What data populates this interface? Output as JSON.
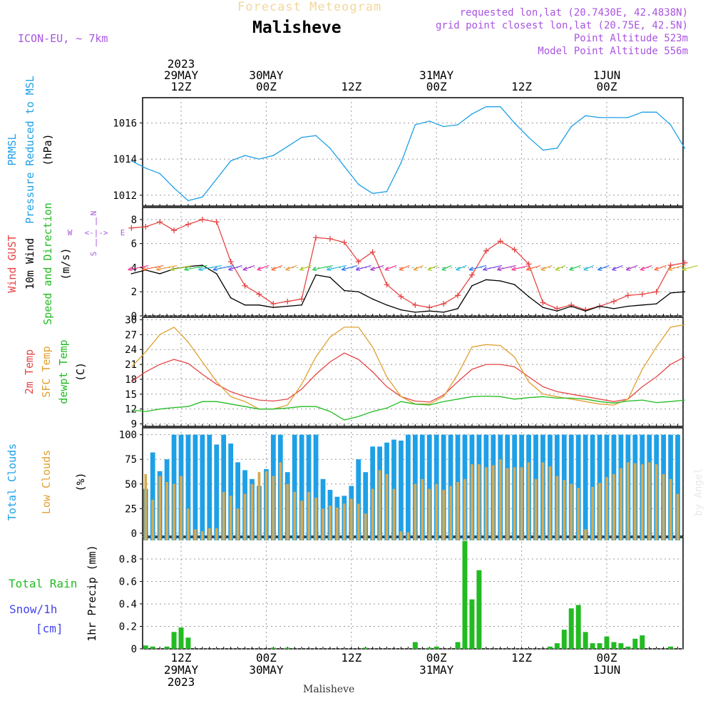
{
  "header": {
    "banner": "Forecast Meteogram",
    "station": "Malisheve",
    "model": "ICON-EU, ~ 7km",
    "requested": "requested lon,lat (20.7430E, 42.4838N)",
    "gridpoint": "grid point closest lon,lat (20.75E, 42.5N)",
    "point_alt": "Point Altitude 523m",
    "model_alt": "Model Point Altitude 556m"
  },
  "footer_station": "Malisheve",
  "watermark": "by Angel",
  "time_axis": {
    "top_labels": [
      {
        "lines": [
          "2023",
          "29MAY",
          "12Z"
        ],
        "hour": 12
      },
      {
        "lines": [
          "30MAY",
          "00Z"
        ],
        "hour": 24
      },
      {
        "lines": [
          "12Z"
        ],
        "hour": 36
      },
      {
        "lines": [
          "31MAY",
          "00Z"
        ],
        "hour": 48
      },
      {
        "lines": [
          "12Z"
        ],
        "hour": 60
      },
      {
        "lines": [
          "1JUN",
          "00Z"
        ],
        "hour": 72
      }
    ],
    "bottom_labels": [
      {
        "lines": [
          "12Z",
          "29MAY",
          "2023"
        ],
        "hour": 12
      },
      {
        "lines": [
          "00Z",
          "30MAY"
        ],
        "hour": 24
      },
      {
        "lines": [
          "12Z"
        ],
        "hour": 36
      },
      {
        "lines": [
          "00Z",
          "31MAY"
        ],
        "hour": 48
      },
      {
        "lines": [
          "12Z"
        ],
        "hour": 60
      },
      {
        "lines": [
          "00Z",
          "1JUN"
        ],
        "hour": 72
      }
    ]
  },
  "panels": {
    "pressure": {
      "labels": [
        {
          "text": "PRMSL",
          "color": "#1ea0e6"
        },
        {
          "text": "Pressure Reduced to MSL",
          "color": "#1ea0e6"
        },
        {
          "text": "(hPa)",
          "color": "#000000"
        }
      ]
    },
    "wind": {
      "labels": [
        {
          "text": "Wind GUST",
          "color": "#e64646"
        },
        {
          "text": "10m Wind",
          "color": "#000000"
        },
        {
          "text": "Speed and Direction",
          "color": "#22bb22"
        },
        {
          "text": "(m/s)",
          "color": "#000000"
        }
      ],
      "compass": {
        "n": "N",
        "s": "S",
        "w": "W",
        "e": "E",
        "ns": "|",
        "we": "<-|->"
      }
    },
    "temp": {
      "labels": [
        {
          "text": "2m Temp",
          "color": "#e64646"
        },
        {
          "text": "SFC Temp",
          "color": "#e0a030"
        },
        {
          "text": "dewpt Temp",
          "color": "#22bb22"
        },
        {
          "text": "(C)",
          "color": "#000000"
        }
      ]
    },
    "clouds": {
      "labels": [
        {
          "text": "Total Clouds",
          "color": "#1ea0e6"
        },
        {
          "text": "Low Clouds",
          "color": "#e0a030"
        },
        {
          "text": "(%)",
          "color": "#000000"
        }
      ]
    },
    "precip": {
      "labels": [
        {
          "text": "1hr Precip (mm)",
          "color": "#000000"
        }
      ],
      "side_labels": [
        {
          "text": "Total  Rain",
          "color": "#22bb22"
        },
        {
          "text": "Snow/1h",
          "color": "#4444ee"
        },
        {
          "text": "[cm]",
          "color": "#4444ee"
        }
      ]
    }
  },
  "chart_data": [
    {
      "type": "line",
      "x_unit": "hours from 29MAY 00Z",
      "x": [
        5,
        7,
        9,
        11,
        13,
        15,
        17,
        19,
        21,
        23,
        25,
        27,
        29,
        31,
        33,
        35,
        37,
        39,
        41,
        43,
        45,
        47,
        49,
        51,
        53,
        55,
        57,
        59,
        61,
        63,
        65,
        67,
        69,
        71,
        73,
        75,
        77,
        79,
        81,
        83
      ],
      "series": [
        {
          "name": "PRMSL",
          "values": [
            1013.9,
            1013.5,
            1013.2,
            1012.4,
            1011.7,
            1011.9,
            1012.9,
            1013.9,
            1014.2,
            1014.0,
            1014.2,
            1014.7,
            1015.2,
            1015.3,
            1014.6,
            1013.6,
            1012.6,
            1012.1,
            1012.2,
            1013.8,
            1015.9,
            1016.1,
            1015.8,
            1015.9,
            1016.5,
            1016.9,
            1016.9,
            1016.0,
            1015.2,
            1014.5,
            1014.6,
            1015.8,
            1016.4,
            1016.3,
            1016.3,
            1016.3,
            1016.6,
            1016.6,
            1015.9,
            1014.6
          ]
        }
      ],
      "ylim": [
        1011.4,
        1017.4
      ],
      "yticks": [
        1012,
        1014,
        1016
      ]
    },
    {
      "type": "line",
      "x_unit": "hours from 29MAY 00Z",
      "x": [
        5,
        7,
        9,
        11,
        13,
        15,
        17,
        19,
        21,
        23,
        25,
        27,
        29,
        31,
        33,
        35,
        37,
        39,
        41,
        43,
        45,
        47,
        49,
        51,
        53,
        55,
        57,
        59,
        61,
        63,
        65,
        67,
        69,
        71,
        73,
        75,
        77,
        79,
        81,
        83
      ],
      "series": [
        {
          "name": "Wind GUST",
          "values": [
            7.3,
            7.4,
            7.8,
            7.1,
            7.6,
            8.0,
            7.8,
            4.5,
            2.5,
            1.8,
            1.0,
            1.2,
            1.4,
            6.5,
            6.4,
            6.1,
            4.5,
            5.3,
            2.6,
            1.6,
            0.9,
            0.7,
            1.0,
            1.7,
            3.4,
            5.4,
            6.2,
            5.5,
            4.3,
            1.1,
            0.6,
            0.9,
            0.5,
            0.8,
            1.2,
            1.7,
            1.8,
            2.0,
            4.2,
            4.4
          ]
        },
        {
          "name": "10m Wind",
          "values": [
            3.5,
            3.8,
            3.5,
            3.9,
            4.1,
            4.2,
            3.5,
            1.5,
            0.9,
            0.9,
            0.7,
            0.8,
            0.9,
            3.4,
            3.2,
            2.1,
            2.0,
            1.4,
            0.9,
            0.5,
            0.3,
            0.4,
            0.3,
            0.6,
            2.5,
            3.0,
            2.9,
            2.6,
            1.6,
            0.7,
            0.4,
            0.8,
            0.4,
            0.8,
            0.6,
            0.8,
            0.9,
            1.0,
            1.9,
            2.0
          ]
        }
      ],
      "ylim": [
        0,
        9
      ],
      "yticks": [
        0,
        2,
        4,
        6,
        8
      ]
    },
    {
      "type": "line",
      "x_unit": "hours from 29MAY 00Z",
      "x": [
        5,
        7,
        9,
        11,
        13,
        15,
        17,
        19,
        21,
        23,
        25,
        27,
        29,
        31,
        33,
        35,
        37,
        39,
        41,
        43,
        45,
        47,
        49,
        51,
        53,
        55,
        57,
        59,
        61,
        63,
        65,
        67,
        69,
        71,
        73,
        75,
        77,
        79,
        81,
        83
      ],
      "series": [
        {
          "name": "2m Temp",
          "values": [
            17.5,
            19.5,
            21.0,
            22.0,
            21.2,
            19.0,
            17.0,
            15.5,
            14.5,
            13.8,
            13.6,
            14.0,
            16.0,
            19.0,
            21.5,
            23.3,
            22.0,
            19.5,
            16.5,
            14.5,
            13.6,
            13.4,
            14.8,
            17.5,
            20.0,
            21.0,
            21.0,
            20.5,
            18.5,
            16.5,
            15.5,
            15.0,
            14.5,
            14.0,
            13.5,
            14.0,
            16.5,
            18.5,
            21.0,
            22.5
          ]
        },
        {
          "name": "SFC Temp",
          "values": [
            20.5,
            23.5,
            27.0,
            28.5,
            25.5,
            21.5,
            17.5,
            14.5,
            13.5,
            12.0,
            12.0,
            12.8,
            17.0,
            22.5,
            26.5,
            28.5,
            28.5,
            24.5,
            18.5,
            14.5,
            13.0,
            13.0,
            14.5,
            19.0,
            24.5,
            25.0,
            24.8,
            22.5,
            17.5,
            15.0,
            14.5,
            14.0,
            13.5,
            13.0,
            12.8,
            14.0,
            20.0,
            24.5,
            28.5,
            29.0
          ]
        },
        {
          "name": "dewpt Temp",
          "values": [
            11.8,
            11.5,
            12.0,
            12.3,
            12.5,
            13.5,
            13.5,
            13.0,
            12.5,
            12.0,
            12.0,
            12.2,
            12.5,
            12.5,
            11.5,
            9.8,
            10.5,
            11.5,
            12.2,
            13.5,
            13.0,
            12.8,
            13.5,
            14.0,
            14.5,
            14.6,
            14.5,
            14.0,
            14.3,
            14.5,
            14.2,
            14.2,
            14.0,
            13.5,
            13.2,
            13.6,
            13.8,
            13.3,
            13.5,
            13.8
          ]
        }
      ],
      "ylim": [
        8.5,
        30.5
      ],
      "yticks": [
        9,
        12,
        15,
        18,
        21,
        24,
        27,
        30
      ]
    },
    {
      "type": "bar",
      "x_unit": "hours from 29MAY 00Z",
      "x_start": 4,
      "x_step": 1,
      "series": [
        {
          "name": "Total Clouds",
          "values": [
            50,
            54,
            63,
            45,
            82,
            63,
            75,
            100,
            100,
            100,
            100,
            100,
            100,
            90,
            100,
            91,
            72,
            64,
            55,
            48,
            65,
            100,
            100,
            62,
            100,
            100,
            100,
            100,
            55,
            44,
            37,
            38,
            48,
            75,
            62,
            88,
            88,
            92,
            95,
            94,
            100,
            100,
            100,
            100,
            100,
            100,
            100,
            100,
            100,
            100,
            100,
            100,
            100,
            100,
            100,
            100,
            100,
            100,
            100,
            100,
            100,
            100,
            100,
            100,
            100,
            100,
            100,
            100,
            100,
            100,
            100,
            100,
            100,
            100,
            100,
            100,
            100,
            100,
            100,
            100,
            86,
            70,
            64,
            58,
            53,
            62,
            73,
            67,
            66,
            53,
            84
          ]
        },
        {
          "name": "Low Clouds",
          "values": [
            44,
            54,
            48,
            60,
            34,
            58,
            52,
            50,
            58,
            25,
            4,
            2,
            5,
            5,
            42,
            38,
            25,
            40,
            50,
            62,
            63,
            58,
            72,
            50,
            42,
            33,
            42,
            36,
            25,
            28,
            26,
            30,
            35,
            30,
            20,
            45,
            64,
            60,
            45,
            2,
            1,
            50,
            55,
            45,
            50,
            44,
            48,
            52,
            55,
            70,
            70,
            67,
            69,
            75,
            66,
            67,
            67,
            72,
            55,
            72,
            68,
            58,
            54,
            50,
            46,
            4,
            47,
            51,
            57,
            60,
            66,
            72,
            71,
            70,
            72,
            70,
            60,
            55,
            40,
            52,
            57,
            58,
            59,
            60,
            58,
            50,
            67,
            66,
            50,
            43,
            67
          ]
        }
      ],
      "ylim": [
        -3,
        107
      ],
      "yticks": [
        0,
        25,
        50,
        75,
        100
      ]
    },
    {
      "type": "bar",
      "x_unit": "hours from 29MAY 00Z",
      "x_start": 4,
      "x_step": 1,
      "series": [
        {
          "name": "Total Rain",
          "values": [
            0,
            0,
            0,
            0.03,
            0.02,
            0,
            0.02,
            0.15,
            0.19,
            0.1,
            0,
            0,
            0,
            0,
            0,
            0,
            0,
            0,
            0,
            0,
            0,
            0.01,
            0,
            0.01,
            0,
            0,
            0,
            0,
            0,
            0,
            0,
            0,
            0,
            0,
            0.01,
            0,
            0,
            0,
            0,
            0,
            0,
            0.06,
            0,
            0.01,
            0.02,
            0,
            0,
            0.06,
            0.96,
            0.44,
            0.7,
            0,
            0,
            0,
            0,
            0,
            0,
            0,
            0,
            0,
            0.02,
            0.05,
            0.17,
            0.36,
            0.39,
            0.15,
            0.05,
            0.05,
            0.11,
            0.06,
            0.05,
            0.02,
            0.09,
            0.12,
            0,
            0,
            0,
            0.02,
            0,
            0.09,
            0,
            0,
            0.01,
            0.02,
            0.01,
            0,
            0,
            0,
            0,
            0,
            0.04,
            0.02,
            0.02
          ]
        }
      ],
      "ylim": [
        0,
        0.99
      ],
      "yticks": [
        0,
        0.2,
        0.4,
        0.6,
        0.8
      ]
    }
  ]
}
